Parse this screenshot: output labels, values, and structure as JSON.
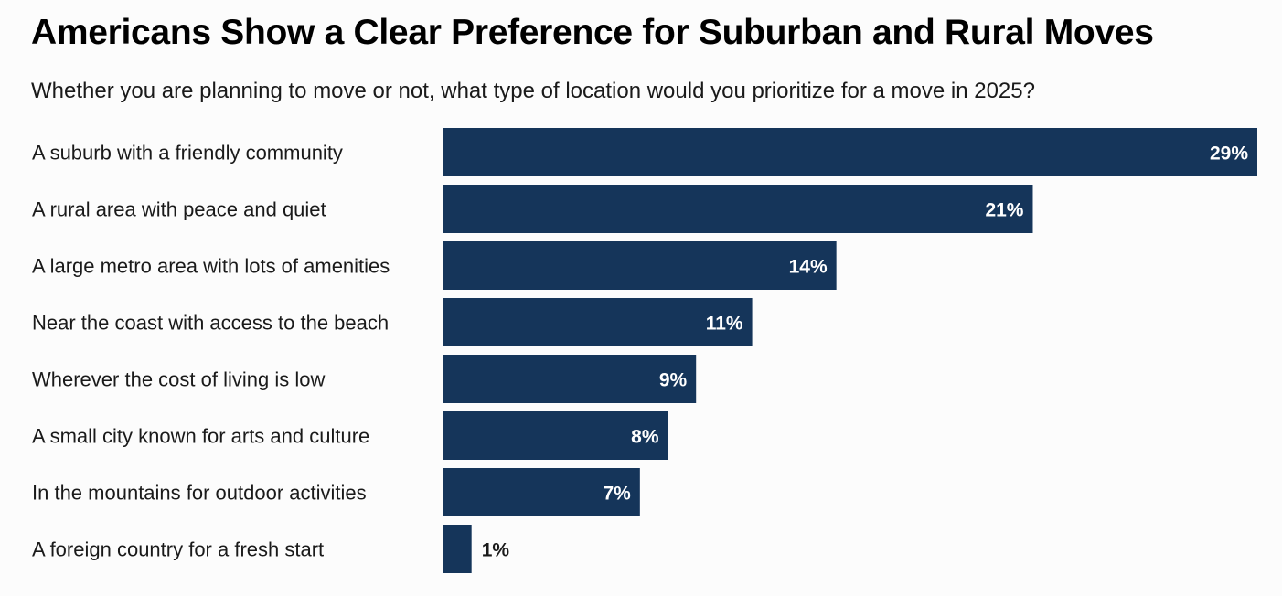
{
  "chart_data": {
    "type": "bar",
    "orientation": "horizontal",
    "title": "Americans Show a Clear Preference for Suburban and Rural Moves",
    "subtitle": "Whether you are planning to move or not, what type of location would you prioritize for a move in 2025?",
    "categories": [
      "A suburb with a friendly community",
      "A rural area with peace and quiet",
      "A large metro area with lots of amenities",
      "Near the coast with access to the beach",
      "Wherever the cost of living is low",
      "A small city known for arts and culture",
      "In the mountains for outdoor activities",
      "A foreign country for a fresh start"
    ],
    "values": [
      29,
      21,
      14,
      11,
      9,
      8,
      7,
      1
    ],
    "value_labels": [
      "29%",
      "21%",
      "14%",
      "11%",
      "9%",
      "8%",
      "7%",
      "1%"
    ],
    "unit": "%",
    "xlim": [
      0,
      29
    ],
    "grid": false,
    "legend": "none",
    "bar_color": "#15355a",
    "label_inside_color": "#ffffff",
    "label_outside_color": "#1a1a1a"
  }
}
